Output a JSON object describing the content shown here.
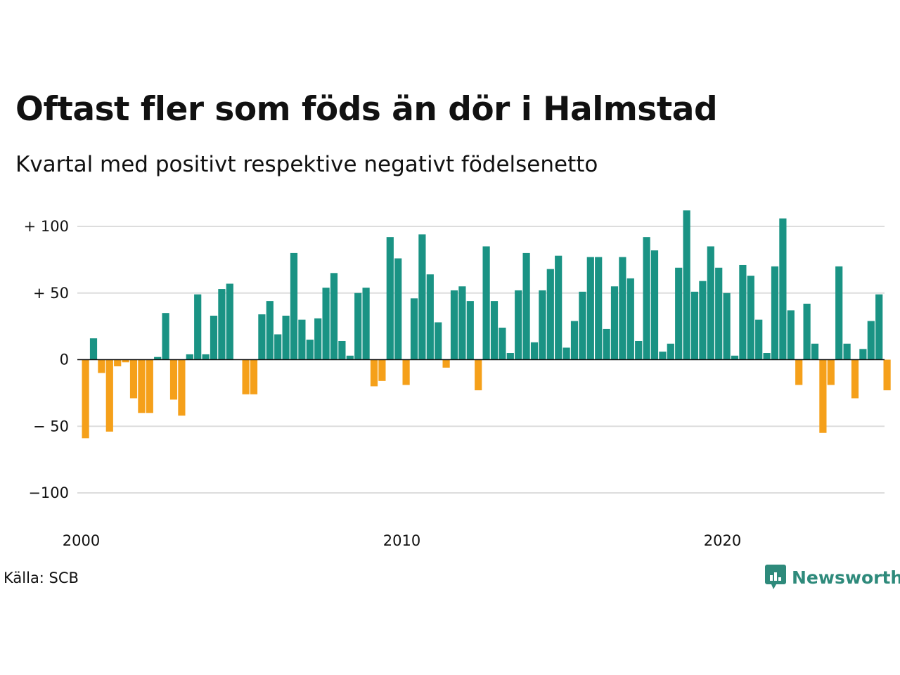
{
  "title": "Oftast fler som föds än dör i Halmstad",
  "subtitle": "Kvartal med positivt respektive negativt födelsenetto",
  "source": "Källa: SCB",
  "logo_text": "Newsworthy",
  "colors": {
    "positive": "#1a9384",
    "negative": "#f5a01a",
    "grid": "#dddddd",
    "zero": "#111111",
    "logo": "#2e8a7b"
  },
  "chart_data": {
    "type": "bar",
    "title": "Oftast fler som föds än dör i Halmstad",
    "subtitle": "Kvartal med positivt respektive negativt födelsenetto",
    "x_start_year": 2000,
    "x_start_quarter": 1,
    "ylim": [
      -120,
      120
    ],
    "y_ticks": [
      {
        "value": 100,
        "label": "+ 100"
      },
      {
        "value": 50,
        "label": "+  50"
      },
      {
        "value": 0,
        "label": "0"
      },
      {
        "value": -50,
        "label": "− 50"
      },
      {
        "value": -100,
        "label": "−100"
      }
    ],
    "x_ticks": [
      {
        "year": 2000,
        "label": "2000"
      },
      {
        "year": 2010,
        "label": "2010"
      },
      {
        "year": 2020,
        "label": "2020"
      }
    ],
    "grid": true,
    "values": [
      -59,
      16,
      -10,
      -54,
      -5,
      -2,
      -29,
      -40,
      -40,
      2,
      35,
      -30,
      -42,
      4,
      49,
      4,
      33,
      53,
      57,
      0,
      -26,
      -26,
      34,
      44,
      19,
      33,
      80,
      30,
      15,
      31,
      54,
      65,
      14,
      3,
      50,
      54,
      -20,
      -16,
      92,
      76,
      -19,
      46,
      94,
      64,
      28,
      -6,
      52,
      55,
      44,
      -23,
      85,
      44,
      24,
      5,
      52,
      80,
      13,
      52,
      68,
      78,
      9,
      29,
      51,
      77,
      77,
      23,
      55,
      77,
      61,
      14,
      92,
      82,
      6,
      12,
      69,
      112,
      51,
      59,
      85,
      69,
      50,
      3,
      71,
      63,
      30,
      5,
      70,
      106,
      37,
      -19,
      42,
      12,
      -55,
      -19,
      70,
      12,
      -29,
      8,
      29,
      49,
      -23
    ]
  }
}
